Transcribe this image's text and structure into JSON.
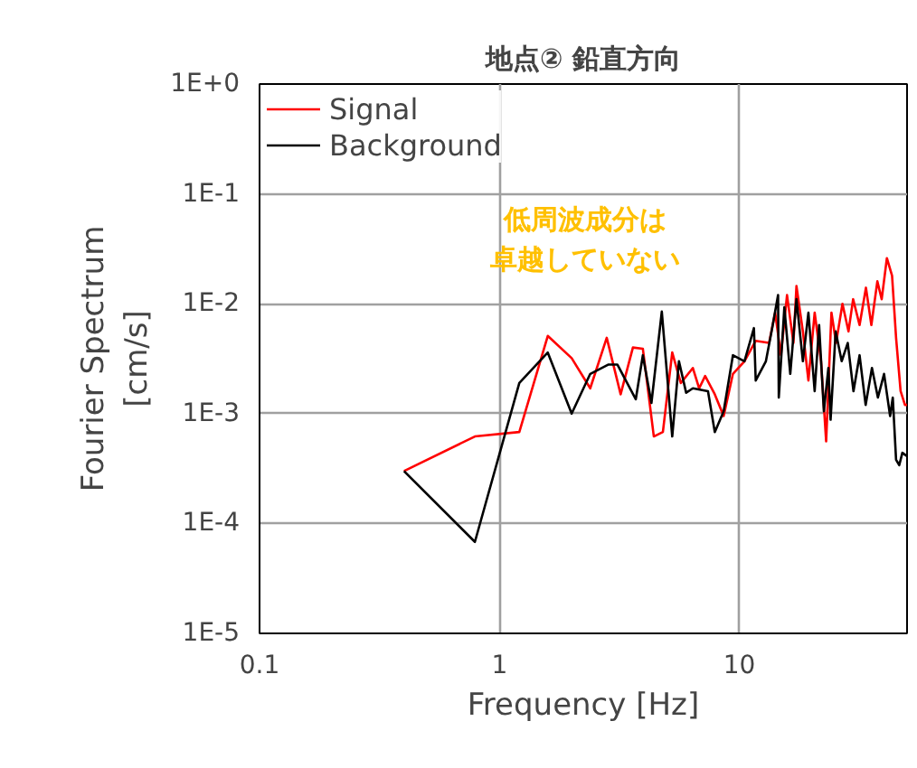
{
  "chart_data": {
    "type": "line",
    "title": "地点② 鉛直方向",
    "xlabel": "Frequency [Hz]",
    "ylabel": "Fourier Spectrum\n[cm/s]",
    "log": "xy",
    "grid": true,
    "legend": "top left",
    "marker": "none",
    "line_style": "solid",
    "xlim": [
      0.1,
      50
    ],
    "xticks": [
      0.1,
      1,
      10
    ],
    "ylim": [
      1e-05,
      1
    ],
    "yticks": [
      {
        "value": 1e-05,
        "label": "1E-5"
      },
      {
        "value": 0.0001,
        "label": "1E-4"
      },
      {
        "value": 0.001,
        "label": "1E-3"
      },
      {
        "value": 0.01,
        "label": "1E-2"
      },
      {
        "value": 0.1,
        "label": "1E-1"
      },
      {
        "value": 1,
        "label": "1E+0"
      }
    ],
    "annotations": [
      "低周波成分は",
      "卓越していない"
    ],
    "series": [
      {
        "name": "Signal",
        "color": "#ff0000",
        "x": [
          0.4,
          0.79,
          1.21,
          1.59,
          2.0,
          2.39,
          2.8,
          3.2,
          3.6,
          3.96,
          4.4,
          4.8,
          5.25,
          5.7,
          6.4,
          6.8,
          7.2,
          7.9,
          8.6,
          9.4,
          10.5,
          11.7,
          13.3,
          14.1,
          14.9,
          15.8,
          16.8,
          17.3,
          18.4,
          19.4,
          20.6,
          21.9,
          23,
          24.2,
          25.3,
          26.9,
          28.5,
          29.8,
          31.7,
          33.7,
          35.5,
          37.6,
          39.2,
          41.2,
          43.3,
          45,
          47,
          49,
          50
        ],
        "values": [
          0.0003,
          0.00062,
          0.00068,
          0.0051,
          0.0032,
          0.0017,
          0.0049,
          0.0015,
          0.004,
          0.0039,
          0.00062,
          0.00068,
          0.0036,
          0.0019,
          0.0026,
          0.0017,
          0.0022,
          0.0015,
          0.00095,
          0.0023,
          0.003,
          0.0046,
          0.0044,
          0.0083,
          0.0034,
          0.012,
          0.0044,
          0.0145,
          0.0056,
          0.002,
          0.0083,
          0.003,
          0.00056,
          0.0083,
          0.0044,
          0.01,
          0.0056,
          0.011,
          0.0064,
          0.014,
          0.0064,
          0.016,
          0.011,
          0.026,
          0.018,
          0.0049,
          0.0016,
          0.0012,
          0.0012
        ]
      },
      {
        "name": "Background",
        "color": "#000000",
        "x": [
          0.4,
          0.79,
          1.21,
          1.59,
          2.0,
          2.39,
          2.85,
          3.1,
          3.7,
          3.96,
          4.3,
          4.75,
          5.25,
          5.6,
          6.0,
          6.4,
          7.4,
          7.9,
          8.6,
          9.4,
          10.5,
          11.5,
          11.7,
          12.9,
          13.7,
          14.5,
          14.6,
          15.4,
          16.3,
          17.3,
          18.4,
          19.4,
          20.6,
          21.5,
          22.5,
          23.5,
          24.0,
          25.2,
          26.7,
          28.3,
          29.9,
          31.7,
          33.6,
          35.7,
          37.8,
          40.1,
          42.5,
          43.6,
          45,
          46.4,
          47.8,
          50
        ],
        "values": [
          0.0003,
          6.8e-05,
          0.0019,
          0.0036,
          0.001,
          0.0023,
          0.0028,
          0.0028,
          0.00135,
          0.0034,
          0.00125,
          0.0085,
          0.00062,
          0.003,
          0.00155,
          0.0017,
          0.0016,
          0.00068,
          0.00105,
          0.0034,
          0.003,
          0.006,
          0.002,
          0.003,
          0.006,
          0.012,
          0.0014,
          0.0093,
          0.0023,
          0.011,
          0.003,
          0.0083,
          0.0016,
          0.0064,
          0.00105,
          0.0026,
          0.00088,
          0.0056,
          0.003,
          0.0044,
          0.0016,
          0.0034,
          0.0012,
          0.0026,
          0.0014,
          0.0023,
          0.00095,
          0.0014,
          0.00038,
          0.00034,
          0.00044,
          0.00041
        ]
      }
    ]
  }
}
